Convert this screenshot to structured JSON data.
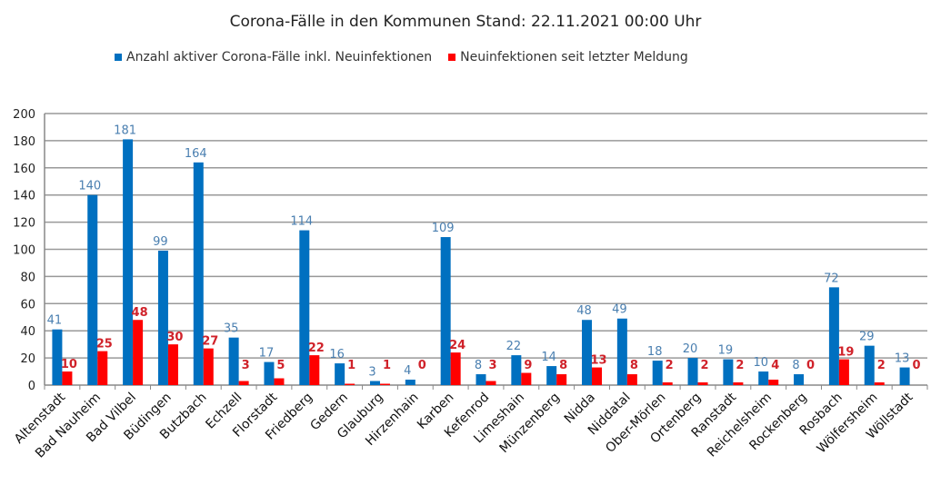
{
  "chart_data": {
    "type": "bar",
    "title": "Corona-Fälle in den Kommunen Stand: 22.11.2021 00:00 Uhr",
    "xlabel": "",
    "ylabel": "",
    "ylim": [
      0,
      200
    ],
    "yticks": [
      0,
      20,
      40,
      60,
      80,
      100,
      120,
      140,
      160,
      180,
      200
    ],
    "grid": true,
    "legend_position": "top",
    "categories": [
      "Altenstadt",
      "Bad Nauheim",
      "Bad Vilbel",
      "Büdingen",
      "Butzbach",
      "Echzell",
      "Florstadt",
      "Friedberg",
      "Gedern",
      "Glauburg",
      "Hirzenhain",
      "Karben",
      "Kefenrod",
      "Limeshain",
      "Münzenberg",
      "Nidda",
      "Niddatal",
      "Ober-Mörlen",
      "Ortenberg",
      "Ranstadt",
      "Reichelsheim",
      "Rockenberg",
      "Rosbach",
      "Wölfersheim",
      "Wöllstadt"
    ],
    "series": [
      {
        "name": "Anzahl aktiver Corona-Fälle inkl. Neuinfektionen",
        "color": "#0070c0",
        "label_color": "#4a7fb0",
        "values": [
          41,
          140,
          181,
          99,
          164,
          35,
          17,
          114,
          16,
          3,
          4,
          109,
          8,
          22,
          14,
          48,
          49,
          18,
          20,
          19,
          10,
          8,
          72,
          29,
          13
        ]
      },
      {
        "name": "Neuinfektionen seit letzter Meldung",
        "color": "#ff0000",
        "label_color": "#d0222a",
        "values": [
          10,
          25,
          48,
          30,
          27,
          3,
          5,
          22,
          1,
          1,
          0,
          24,
          3,
          9,
          8,
          13,
          8,
          2,
          2,
          2,
          4,
          0,
          19,
          2,
          0
        ]
      }
    ]
  }
}
